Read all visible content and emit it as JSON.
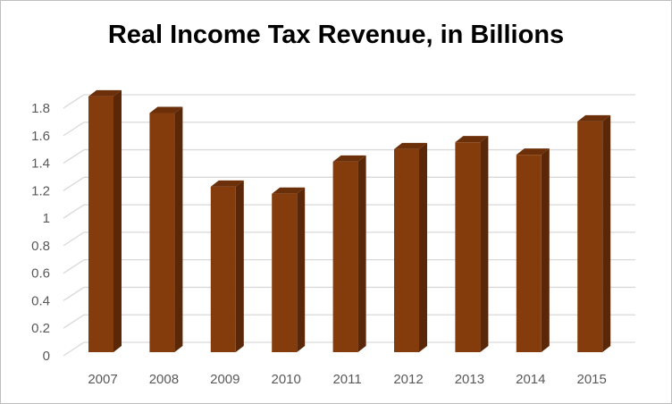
{
  "chart_data": {
    "type": "bar",
    "style": "3d-column",
    "title": "Real Income Tax Revenue, in Billions",
    "xlabel": "",
    "ylabel": "",
    "categories": [
      "2007",
      "2008",
      "2009",
      "2010",
      "2011",
      "2012",
      "2013",
      "2014",
      "2015"
    ],
    "values": [
      1.84,
      1.72,
      1.19,
      1.14,
      1.37,
      1.46,
      1.51,
      1.42,
      1.66
    ],
    "ylim": [
      0,
      1.8
    ],
    "yticks": [
      "0",
      "0.2",
      "0.4",
      "0.6",
      "0.8",
      "1",
      "1.2",
      "1.4",
      "1.6",
      "1.8"
    ],
    "grid": true,
    "legend": "none",
    "colors": {
      "front": "#843C0C",
      "side": "#5A2808",
      "top": "#6B300A",
      "grid": "#D9D9D9"
    }
  }
}
